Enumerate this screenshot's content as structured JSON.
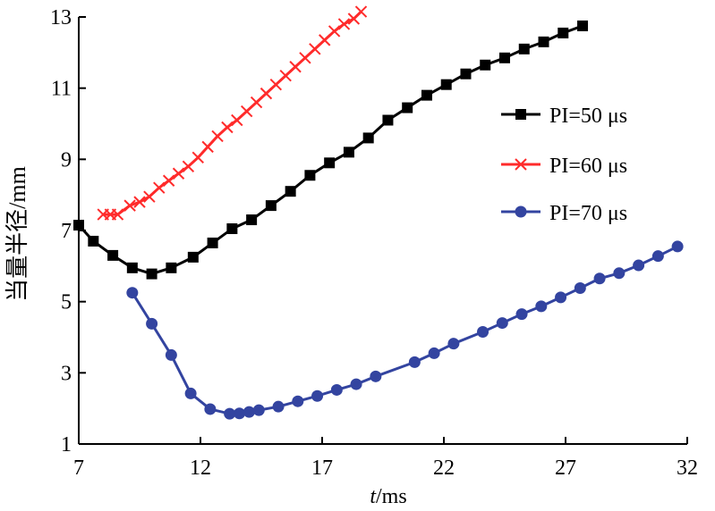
{
  "chart_data": {
    "type": "line",
    "title": "",
    "xlabel_italic": "t",
    "xlabel_unit": "/ms",
    "ylabel": "当量半径/mm",
    "xlim": [
      7,
      32
    ],
    "ylim": [
      1,
      13
    ],
    "xticks": [
      7,
      12,
      17,
      22,
      27,
      32
    ],
    "yticks": [
      1,
      3,
      5,
      7,
      9,
      11,
      13
    ],
    "legend_position": "right",
    "grid": false,
    "series": [
      {
        "name": "PI=50 μs",
        "color": "#000000",
        "marker": "square",
        "points": [
          [
            7.0,
            7.15
          ],
          [
            7.6,
            6.7
          ],
          [
            8.4,
            6.3
          ],
          [
            9.2,
            5.95
          ],
          [
            10.0,
            5.78
          ],
          [
            10.8,
            5.95
          ],
          [
            11.7,
            6.25
          ],
          [
            12.5,
            6.65
          ],
          [
            13.3,
            7.05
          ],
          [
            14.1,
            7.3
          ],
          [
            14.9,
            7.7
          ],
          [
            15.7,
            8.1
          ],
          [
            16.5,
            8.55
          ],
          [
            17.3,
            8.9
          ],
          [
            18.1,
            9.2
          ],
          [
            18.9,
            9.6
          ],
          [
            19.7,
            10.1
          ],
          [
            20.5,
            10.45
          ],
          [
            21.3,
            10.8
          ],
          [
            22.1,
            11.1
          ],
          [
            22.9,
            11.4
          ],
          [
            23.7,
            11.65
          ],
          [
            24.5,
            11.85
          ],
          [
            25.3,
            12.1
          ],
          [
            26.1,
            12.3
          ],
          [
            26.9,
            12.55
          ],
          [
            27.7,
            12.75
          ]
        ]
      },
      {
        "name": "PI=60 μs",
        "color": "#ff2b2b",
        "marker": "x",
        "points": [
          [
            8.0,
            7.45
          ],
          [
            8.3,
            7.45
          ],
          [
            8.6,
            7.45
          ],
          [
            9.1,
            7.7
          ],
          [
            9.5,
            7.8
          ],
          [
            9.9,
            7.95
          ],
          [
            10.3,
            8.2
          ],
          [
            10.7,
            8.4
          ],
          [
            11.1,
            8.6
          ],
          [
            11.5,
            8.8
          ],
          [
            11.9,
            9.05
          ],
          [
            12.3,
            9.35
          ],
          [
            12.7,
            9.65
          ],
          [
            13.1,
            9.9
          ],
          [
            13.5,
            10.1
          ],
          [
            13.9,
            10.35
          ],
          [
            14.3,
            10.6
          ],
          [
            14.7,
            10.85
          ],
          [
            15.1,
            11.1
          ],
          [
            15.5,
            11.35
          ],
          [
            15.9,
            11.6
          ],
          [
            16.3,
            11.85
          ],
          [
            16.7,
            12.1
          ],
          [
            17.1,
            12.35
          ],
          [
            17.5,
            12.6
          ],
          [
            17.9,
            12.8
          ],
          [
            18.3,
            12.95
          ],
          [
            18.6,
            13.15
          ]
        ]
      },
      {
        "name": "PI=70 μs",
        "color": "#3344a0",
        "marker": "circle",
        "points": [
          [
            9.2,
            5.25
          ],
          [
            10.0,
            4.38
          ],
          [
            10.8,
            3.5
          ],
          [
            11.6,
            2.42
          ],
          [
            12.4,
            1.98
          ],
          [
            13.2,
            1.85
          ],
          [
            13.6,
            1.86
          ],
          [
            14.0,
            1.9
          ],
          [
            14.4,
            1.95
          ],
          [
            15.2,
            2.05
          ],
          [
            16.0,
            2.2
          ],
          [
            16.8,
            2.35
          ],
          [
            17.6,
            2.52
          ],
          [
            18.4,
            2.68
          ],
          [
            19.2,
            2.9
          ],
          [
            20.8,
            3.3
          ],
          [
            21.6,
            3.55
          ],
          [
            22.4,
            3.82
          ],
          [
            23.6,
            4.15
          ],
          [
            24.4,
            4.4
          ],
          [
            25.2,
            4.65
          ],
          [
            26.0,
            4.87
          ],
          [
            26.8,
            5.12
          ],
          [
            27.6,
            5.38
          ],
          [
            28.4,
            5.65
          ],
          [
            29.2,
            5.8
          ],
          [
            30.0,
            6.02
          ],
          [
            30.8,
            6.28
          ],
          [
            31.6,
            6.55
          ]
        ]
      }
    ]
  }
}
